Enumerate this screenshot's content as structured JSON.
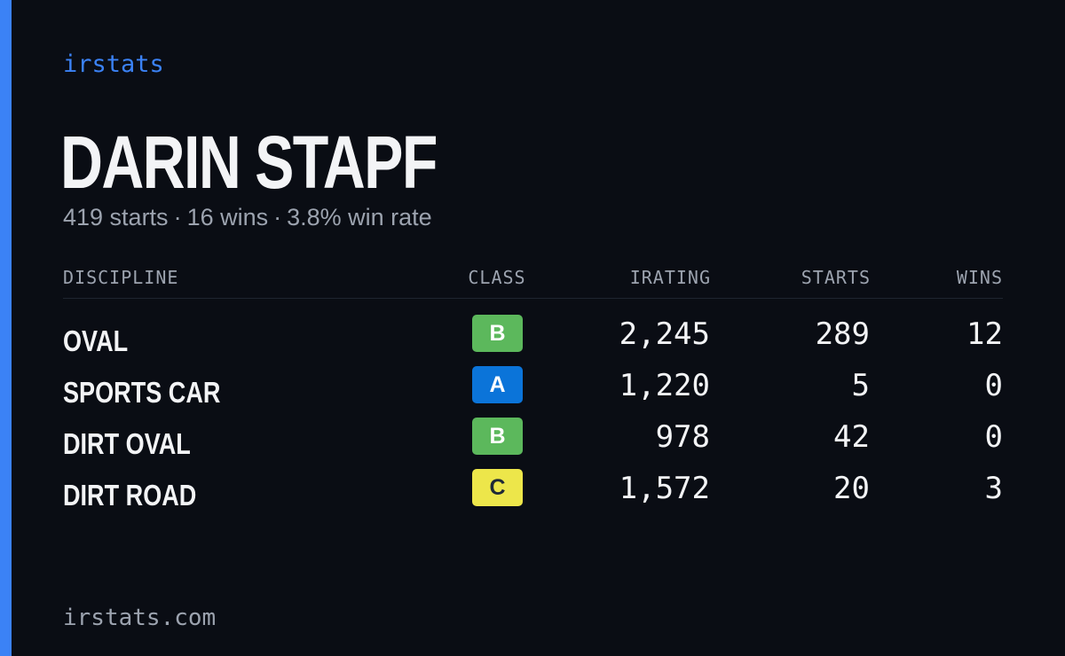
{
  "brand": "irstats",
  "driver": {
    "name": "DARIN STAPF",
    "starts_text": "419 starts",
    "wins_text": "16 wins",
    "win_rate_text": "3.8% win rate",
    "separator": "·"
  },
  "table": {
    "headers": {
      "discipline": "DISCIPLINE",
      "class": "CLASS",
      "irating": "IRATING",
      "starts": "STARTS",
      "wins": "WINS"
    },
    "rows": [
      {
        "discipline": "OVAL",
        "class": "B",
        "irating": "2,245",
        "starts": "289",
        "wins": "12"
      },
      {
        "discipline": "SPORTS CAR",
        "class": "A",
        "irating": "1,220",
        "starts": "5",
        "wins": "0"
      },
      {
        "discipline": "DIRT OVAL",
        "class": "B",
        "irating": "978",
        "starts": "42",
        "wins": "0"
      },
      {
        "discipline": "DIRT ROAD",
        "class": "C",
        "irating": "1,572",
        "starts": "20",
        "wins": "3"
      }
    ]
  },
  "class_colors": {
    "A": {
      "bg": "#0b74d9",
      "fg": "#ffffff"
    },
    "B": {
      "bg": "#5cb85c",
      "fg": "#ffffff"
    },
    "C": {
      "bg": "#ede64a",
      "fg": "#1f2937"
    }
  },
  "footer": "irstats.com"
}
